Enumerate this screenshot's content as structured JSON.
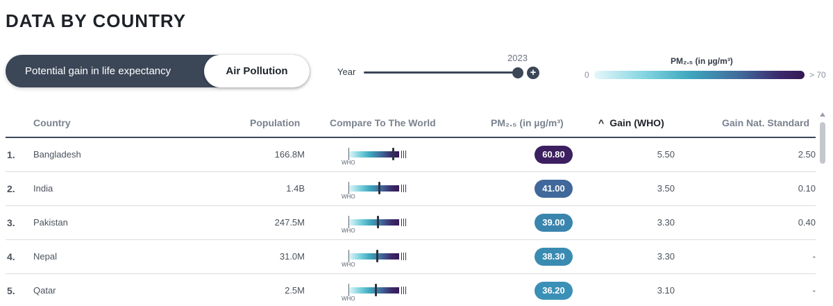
{
  "title": "DATA BY COUNTRY",
  "toggle": {
    "left_label": "Potential gain in life expectancy",
    "right_label": "Air Pollution",
    "active": "Air Pollution"
  },
  "year": {
    "label": "Year",
    "value": "2023",
    "plus_icon": "+"
  },
  "legend": {
    "title": "PM₂.₅ (in µg/m³)",
    "min": "0",
    "max": "> 70"
  },
  "table": {
    "headers": {
      "country": "Country",
      "population": "Population",
      "compare": "Compare To The World",
      "pm": "PM₂.₅ (in µg/m³)",
      "gain_who": "Gain (WHO)",
      "gain_nat": "Gain Nat. Standard"
    },
    "sort_icon": "^",
    "rows": [
      {
        "rank": "1.",
        "country": "Bangladesh",
        "population": "166.8M",
        "who_label": "WHO",
        "pm": "60.80",
        "pm_value": 60.8,
        "pm_color": "#3b1f5e",
        "gain_who": "5.50",
        "gain_nat": "2.50"
      },
      {
        "rank": "2.",
        "country": "India",
        "population": "1.4B",
        "who_label": "WHO",
        "pm": "41.00",
        "pm_value": 41.0,
        "pm_color": "#40689a",
        "gain_who": "3.50",
        "gain_nat": "0.10"
      },
      {
        "rank": "3.",
        "country": "Pakistan",
        "population": "247.5M",
        "who_label": "WHO",
        "pm": "39.00",
        "pm_value": 39.0,
        "pm_color": "#3a85ad",
        "gain_who": "3.30",
        "gain_nat": "0.40"
      },
      {
        "rank": "4.",
        "country": "Nepal",
        "population": "31.0M",
        "who_label": "WHO",
        "pm": "38.30",
        "pm_value": 38.3,
        "pm_color": "#3a8bb2",
        "gain_who": "3.30",
        "gain_nat": "-"
      },
      {
        "rank": "5.",
        "country": "Qatar",
        "population": "2.5M",
        "who_label": "WHO",
        "pm": "36.20",
        "pm_value": 36.2,
        "pm_color": "#3a90b6",
        "gain_who": "3.10",
        "gain_nat": "-"
      }
    ]
  }
}
